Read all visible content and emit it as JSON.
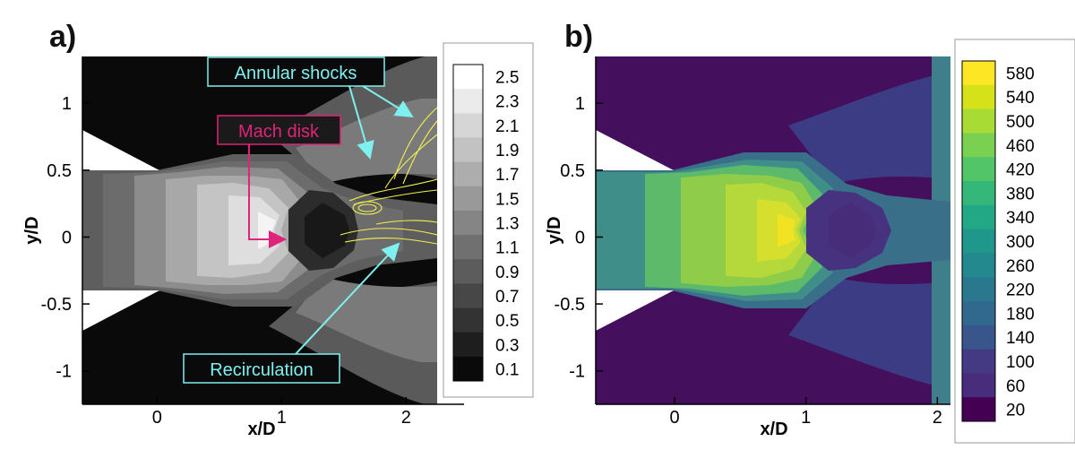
{
  "chart_data": [
    {
      "type": "heatmap",
      "panel_label": "a)",
      "variable": "",
      "xlabel": "x/D",
      "ylabel": "y/D",
      "xlim": [
        -0.6,
        2.25
      ],
      "ylim": [
        -1.25,
        1.35
      ],
      "x_ticks": [
        "0",
        "1",
        "2"
      ],
      "y_ticks": [
        "1",
        "0.5",
        "0",
        "-0.5",
        "-1"
      ],
      "colormap": "grayscale",
      "colorbar": {
        "levels": [
          0.1,
          0.3,
          0.5,
          0.7,
          0.9,
          1.1,
          1.3,
          1.5,
          1.7,
          1.9,
          2.1,
          2.3,
          2.5
        ],
        "labels": [
          "2.5",
          "2.3",
          "2.1",
          "1.9",
          "1.7",
          "1.5",
          "1.3",
          "1.1",
          "0.9",
          "0.7",
          "0.5",
          "0.3",
          "0.1"
        ]
      },
      "annotations": [
        {
          "text": "Annular shocks",
          "color": "#7ff0f0"
        },
        {
          "text": "Mach disk",
          "color": "#e0237a"
        },
        {
          "text": "Recirculation",
          "color": "#7ff0f0"
        }
      ],
      "streamline_color": "#f5f050"
    },
    {
      "type": "heatmap",
      "panel_label": "b)",
      "variable": "",
      "xlabel": "x/D",
      "ylabel": "y/D",
      "xlim": [
        -0.6,
        2.1
      ],
      "ylim": [
        -1.25,
        1.35
      ],
      "x_ticks": [
        "0",
        "1",
        "2"
      ],
      "y_ticks": [
        "1",
        "0.5",
        "0",
        "-0.5",
        "-1"
      ],
      "colormap": "viridis",
      "colorbar": {
        "levels": [
          20,
          60,
          100,
          140,
          180,
          220,
          260,
          300,
          340,
          380,
          420,
          460,
          500,
          540,
          580
        ],
        "labels": [
          "580",
          "540",
          "500",
          "460",
          "420",
          "380",
          "340",
          "300",
          "260",
          "220",
          "180",
          "140",
          "100",
          "60",
          "20"
        ]
      }
    }
  ]
}
